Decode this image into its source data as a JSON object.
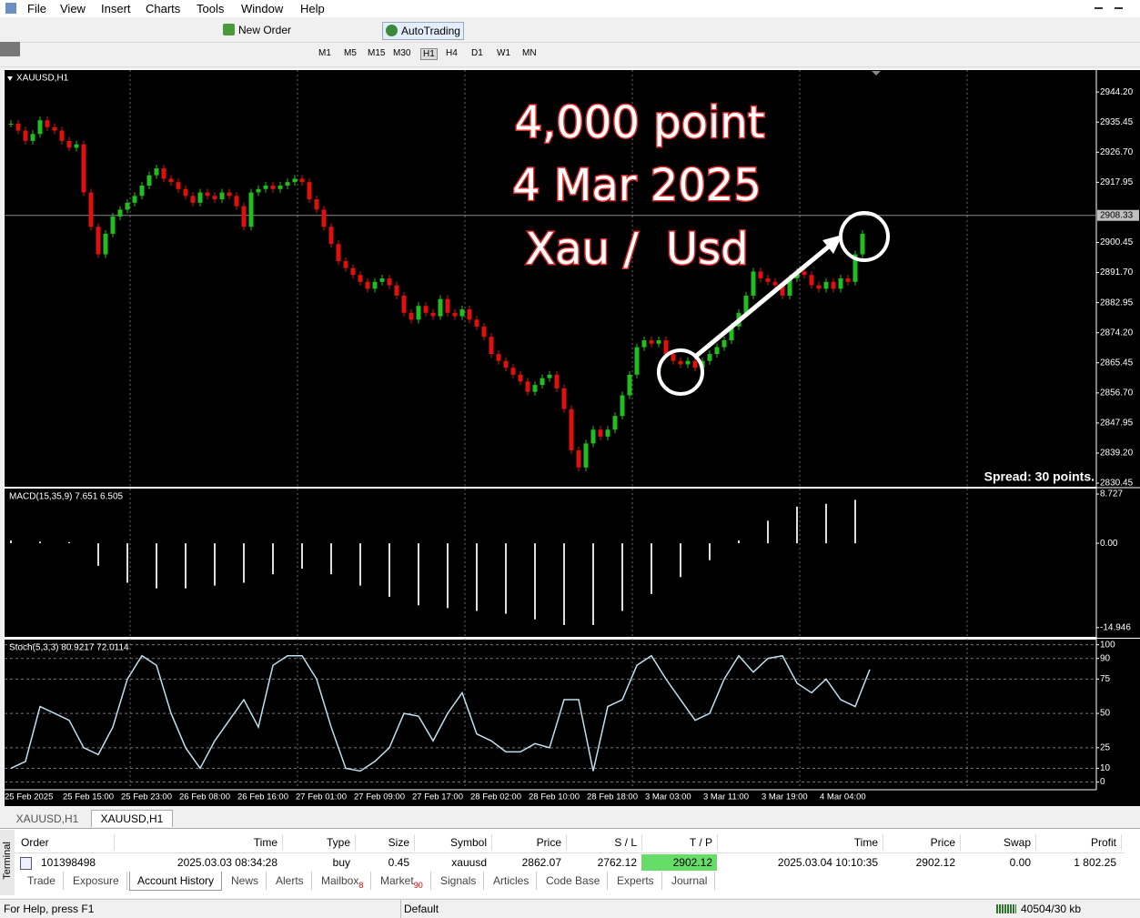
{
  "menu": [
    "File",
    "View",
    "Insert",
    "Charts",
    "Tools",
    "Window",
    "Help"
  ],
  "toolbar": {
    "new_order": "New Order",
    "autotrading": "AutoTrading",
    "timeframes": [
      "M1",
      "M5",
      "M15",
      "M30",
      "H1",
      "H4",
      "D1",
      "W1",
      "MN"
    ]
  },
  "chart": {
    "symbol_label": "XAUUSD,H1",
    "ylim": [
      2829.4,
      2950.6
    ],
    "yticks": [
      {
        "value": 2944.2,
        "label": "2944.20"
      },
      {
        "value": 2935.45,
        "label": "2935.45"
      },
      {
        "value": 2926.7,
        "label": "2926.70"
      },
      {
        "value": 2917.95,
        "label": "2917.95"
      },
      {
        "value": 2900.45,
        "label": "2900.45"
      },
      {
        "value": 2891.7,
        "label": "2891.70"
      },
      {
        "value": 2882.95,
        "label": "2882.95"
      },
      {
        "value": 2874.2,
        "label": "2874.20"
      },
      {
        "value": 2865.45,
        "label": "2865.45"
      },
      {
        "value": 2856.7,
        "label": "2856.70"
      },
      {
        "value": 2847.95,
        "label": "2847.95"
      },
      {
        "value": 2839.2,
        "label": "2839.20"
      },
      {
        "value": 2830.45,
        "label": "2830.45"
      }
    ],
    "current_price": 2908.33,
    "closes": [
      2935,
      2933,
      2930,
      2932,
      2936,
      2934,
      2933,
      2930,
      2928,
      2929,
      2915,
      2905,
      2897,
      2903,
      2908,
      2910,
      2912,
      2914,
      2917,
      2920,
      2922,
      2919,
      2918,
      2916,
      2914,
      2912,
      2915,
      2914,
      2913,
      2915,
      2914,
      2911,
      2905,
      2915,
      2916,
      2917,
      2916,
      2917,
      2918,
      2919,
      2918,
      2913,
      2910,
      2905,
      2900,
      2895,
      2893,
      2891,
      2889,
      2887,
      2889,
      2890,
      2888,
      2885,
      2880,
      2878,
      2882,
      2880,
      2879,
      2884,
      2880,
      2879,
      2881,
      2878,
      2876,
      2873,
      2868,
      2866,
      2864,
      2862,
      2860,
      2857,
      2859,
      2861,
      2862,
      2858,
      2852,
      2840,
      2835,
      2842,
      2846,
      2844,
      2846,
      2850,
      2856,
      2862,
      2870,
      2872,
      2871,
      2872,
      2868,
      2866,
      2865,
      2866,
      2864,
      2866,
      2868,
      2870,
      2872,
      2876,
      2880,
      2885,
      2892,
      2890,
      2889,
      2888,
      2885,
      2890,
      2892,
      2891,
      2888,
      2887,
      2889,
      2887,
      2890,
      2889,
      2897,
      2903
    ],
    "annotations": [
      "4,000 point",
      "4 Mar 2025",
      "Xau /  Usd"
    ],
    "spread": "Spread: 30 points.",
    "macd": {
      "label": "MACD(15,35,9) 7.651 6.505",
      "ylim": [
        -16.6,
        9.7
      ],
      "yticks": [
        8.727,
        {
          "value": 0,
          "label": "0.00"
        },
        -14.946
      ],
      "values": [
        0.5,
        0.3,
        0.2,
        -4,
        -7,
        -8,
        -8,
        -7.5,
        -7,
        -5.5,
        -4.5,
        -5.5,
        -7.5,
        -9.5,
        -11,
        -11.5,
        -12,
        -12.5,
        -13.5,
        -14.5,
        -14.5,
        -12,
        -9,
        -6,
        -3,
        0.5,
        4,
        6.5,
        7,
        7.7
      ]
    },
    "stoch": {
      "label": "Stoch(5,3,3) 80.9217 72.0114",
      "ylim": [
        -5.6,
        103.75
      ],
      "yticks": [
        100,
        90,
        75,
        50,
        25,
        10,
        0
      ],
      "values": [
        10,
        15,
        55,
        50,
        45,
        25,
        20,
        40,
        75,
        92,
        85,
        50,
        25,
        10,
        30,
        45,
        60,
        40,
        85,
        92,
        92,
        75,
        40,
        10,
        8,
        15,
        25,
        50,
        48,
        30,
        50,
        65,
        35,
        30,
        22,
        22,
        28,
        25,
        60,
        60,
        8,
        55,
        60,
        85,
        92,
        75,
        60,
        45,
        50,
        75,
        92,
        80,
        90,
        92,
        72,
        65,
        75,
        60,
        55,
        82
      ]
    },
    "time_labels": [
      "25 Feb 2025",
      "25 Feb 15:00",
      "25 Feb 23:00",
      "26 Feb 08:00",
      "26 Feb 16:00",
      "27 Feb 01:00",
      "27 Feb 09:00",
      "27 Feb 17:00",
      "28 Feb 02:00",
      "28 Feb 10:00",
      "28 Feb 18:00",
      "3 Mar 03:00",
      "3 Mar 11:00",
      "3 Mar 19:00",
      "4 Mar 04:00"
    ]
  },
  "chart_tabs": [
    "XAUUSD,H1",
    "XAUUSD,H1"
  ],
  "terminal": {
    "columns": [
      "Order",
      "Time",
      "Type",
      "Size",
      "Symbol",
      "Price",
      "S / L",
      "T / P",
      "Time",
      "Price",
      "Swap",
      "Profit"
    ],
    "rows": [
      [
        "101398498",
        "2025.03.03 08:34:28",
        "buy",
        "0.45",
        "xauusd",
        "2862.07",
        "2762.12",
        "2902.12",
        "2025.03.04 10:10:35",
        "2902.12",
        "0.00",
        "1 802.25"
      ]
    ],
    "side_label": "Terminal",
    "tabs": [
      {
        "label": "Trade"
      },
      {
        "label": "Exposure"
      },
      {
        "label": "Account History"
      },
      {
        "label": "News"
      },
      {
        "label": "Alerts"
      },
      {
        "label": "Mailbox",
        "badge": 8
      },
      {
        "label": "Market",
        "badge": 90
      },
      {
        "label": "Signals"
      },
      {
        "label": "Articles"
      },
      {
        "label": "Code Base"
      },
      {
        "label": "Experts"
      },
      {
        "label": "Journal"
      }
    ]
  },
  "status": {
    "help": "For Help, press F1",
    "profile": "Default",
    "traffic": "40504/30 kb"
  }
}
